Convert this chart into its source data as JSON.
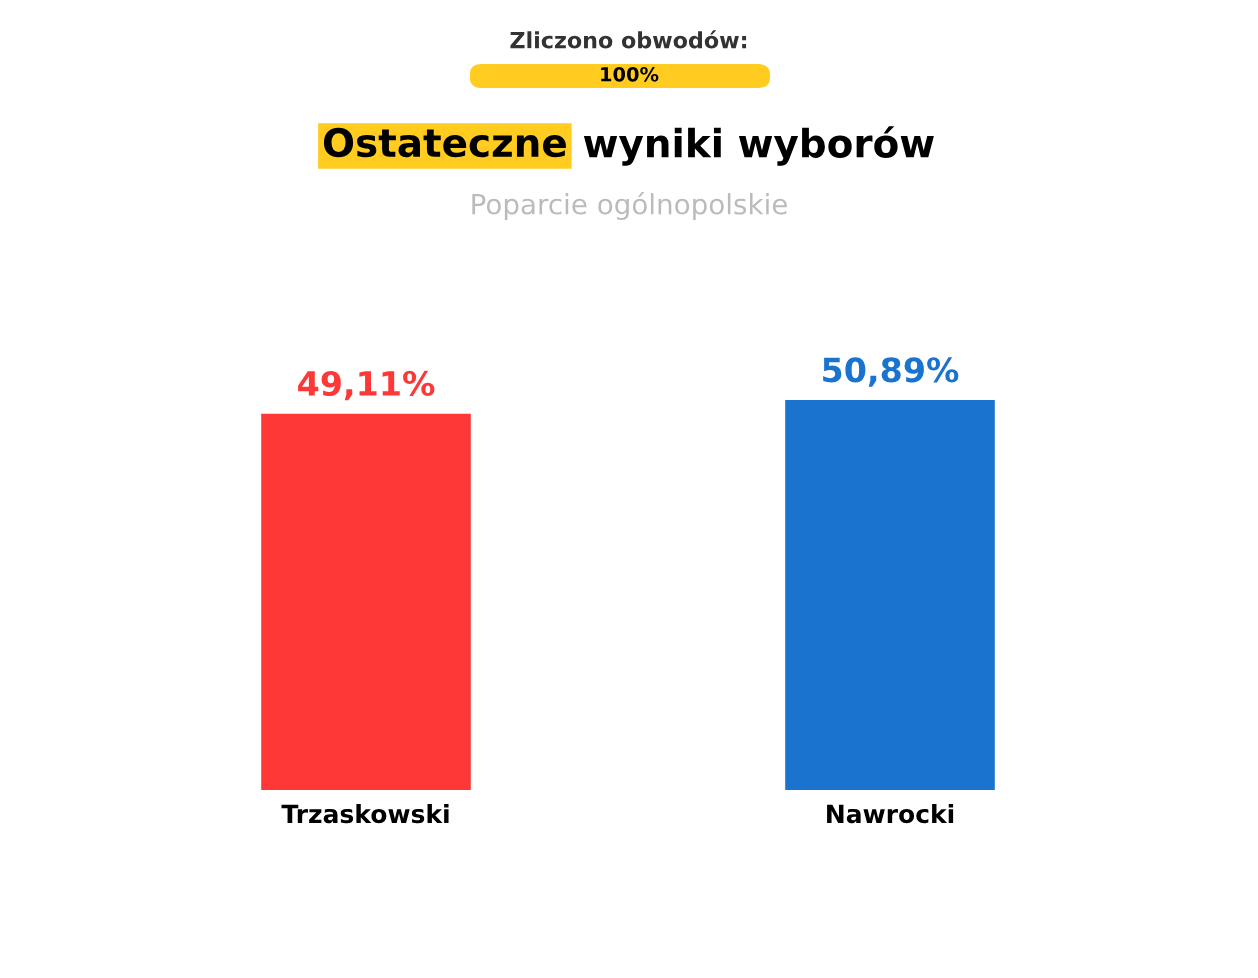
{
  "chart_data": {
    "type": "bar",
    "title": "Ostateczne wyniki wyborów",
    "subtitle": "Poparcie ogólnopolskie",
    "annotations": [
      "Zliczono obwodów:",
      "100%"
    ],
    "categories": [
      "Trzaskowski",
      "Nawrocki"
    ],
    "values": [
      49.11,
      50.89
    ],
    "colors": [
      "#fe3737",
      "#1a73cf"
    ],
    "value_labels": [
      "49,11%",
      "50,89%"
    ],
    "grid": false,
    "legend": false
  }
}
